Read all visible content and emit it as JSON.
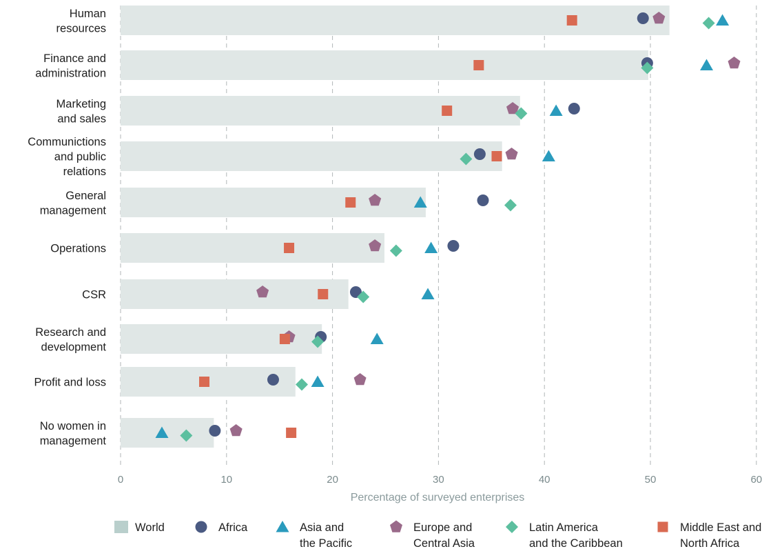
{
  "chart_data": {
    "type": "bar",
    "orientation": "horizontal",
    "categories": [
      [
        "Human",
        "resources"
      ],
      [
        "Finance and",
        "administration"
      ],
      [
        "Marketing",
        "and sales"
      ],
      [
        "Communictions",
        "and public",
        "relations"
      ],
      [
        "General",
        "management"
      ],
      [
        "Operations"
      ],
      [
        "CSR"
      ],
      [
        "Research and",
        "development"
      ],
      [
        "Profit and loss"
      ],
      [
        "No women in",
        "management"
      ]
    ],
    "xlabel": "Percentage of surveyed enterprises",
    "xlim": [
      0,
      60
    ],
    "xticks": [
      0,
      10,
      20,
      30,
      40,
      50,
      60
    ],
    "grid": "vertical dashed",
    "legend_position": "bottom",
    "series": [
      {
        "name": "World",
        "marker": "bar",
        "color": "#e0e7e6",
        "legend_color": "#b9cfcc",
        "values": [
          51.8,
          49.8,
          37.7,
          36.0,
          28.8,
          24.9,
          21.5,
          19.0,
          16.5,
          8.8
        ]
      },
      {
        "name": "Africa",
        "marker": "circle",
        "color": "#4a5a82",
        "values": [
          49.3,
          49.7,
          42.8,
          33.9,
          34.2,
          31.4,
          22.2,
          18.9,
          14.4,
          8.9
        ]
      },
      {
        "name": "Asia and\nthe Pacific",
        "marker": "triangle",
        "color": "#2a9bbd",
        "values": [
          56.8,
          55.3,
          41.1,
          40.4,
          28.3,
          29.3,
          29.0,
          24.2,
          18.6,
          3.9
        ]
      },
      {
        "name": "Europe and\nCentral Asia",
        "marker": "pentagon",
        "color": "#9a6a8a",
        "values": [
          50.8,
          57.9,
          37.0,
          36.9,
          24.0,
          24.0,
          13.4,
          15.9,
          22.6,
          10.9
        ]
      },
      {
        "name": "Latin America\nand the Caribbean",
        "marker": "diamond",
        "color": "#5cbf9f",
        "values": [
          55.5,
          49.7,
          37.8,
          32.6,
          36.8,
          26.0,
          22.9,
          18.6,
          17.1,
          6.2
        ]
      },
      {
        "name": "Middle East and\nNorth Africa",
        "marker": "square",
        "color": "#d96a52",
        "values": [
          42.6,
          33.8,
          30.8,
          35.5,
          21.7,
          15.9,
          19.1,
          15.5,
          7.9,
          16.1
        ]
      }
    ]
  }
}
